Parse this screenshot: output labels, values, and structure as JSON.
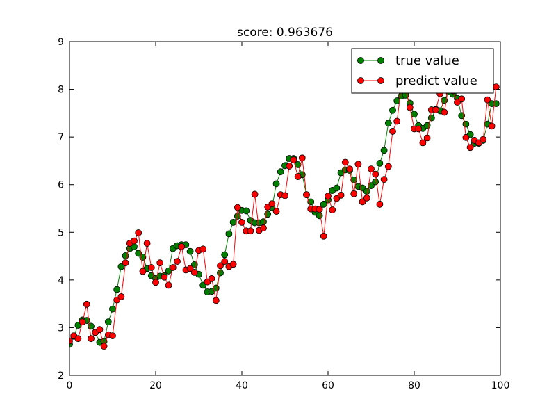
{
  "chart_data": {
    "type": "line",
    "title": "score: 0.963676",
    "xlabel": "",
    "ylabel": "",
    "xlim": [
      0,
      100
    ],
    "ylim": [
      2,
      9
    ],
    "x_ticks": [
      0,
      20,
      40,
      60,
      80,
      100
    ],
    "y_ticks": [
      2,
      3,
      4,
      5,
      6,
      7,
      8,
      9
    ],
    "x_tick_labels": [
      "0",
      "20",
      "40",
      "60",
      "80",
      "100"
    ],
    "y_tick_labels": [
      "2",
      "3",
      "4",
      "5",
      "6",
      "7",
      "8",
      "9"
    ],
    "grid": false,
    "legend_position": "top-right",
    "x": [
      0,
      1,
      2,
      3,
      4,
      5,
      6,
      7,
      8,
      9,
      10,
      11,
      12,
      13,
      14,
      15,
      16,
      17,
      18,
      19,
      20,
      21,
      22,
      23,
      24,
      25,
      26,
      27,
      28,
      29,
      30,
      31,
      32,
      33,
      34,
      35,
      36,
      37,
      38,
      39,
      40,
      41,
      42,
      43,
      44,
      45,
      46,
      47,
      48,
      49,
      50,
      51,
      52,
      53,
      54,
      55,
      56,
      57,
      58,
      59,
      60,
      61,
      62,
      63,
      64,
      65,
      66,
      67,
      68,
      69,
      70,
      71,
      72,
      73,
      74,
      75,
      76,
      77,
      78,
      79,
      80,
      81,
      82,
      83,
      84,
      85,
      86,
      87,
      88,
      89,
      90,
      91,
      92,
      93,
      94,
      95,
      96,
      97,
      98,
      99
    ],
    "series": [
      {
        "name": "true value",
        "color": "#008000",
        "values": [
          2.65,
          2.82,
          3.05,
          3.16,
          3.15,
          3.03,
          2.9,
          2.69,
          2.71,
          3.12,
          3.39,
          3.8,
          4.28,
          4.51,
          4.66,
          4.7,
          4.56,
          4.48,
          4.24,
          4.09,
          4.03,
          4.08,
          4.09,
          4.19,
          4.66,
          4.72,
          4.74,
          4.74,
          4.6,
          4.32,
          4.12,
          3.89,
          3.75,
          3.76,
          3.83,
          4.15,
          4.53,
          4.97,
          5.21,
          5.34,
          5.46,
          5.45,
          5.25,
          5.2,
          5.2,
          5.22,
          5.38,
          5.52,
          6.02,
          6.27,
          6.4,
          6.55,
          6.55,
          6.42,
          6.21,
          5.79,
          5.64,
          5.42,
          5.35,
          5.59,
          5.68,
          5.88,
          5.93,
          6.25,
          6.31,
          6.3,
          6.1,
          5.96,
          5.93,
          5.86,
          5.98,
          6.06,
          6.45,
          6.72,
          7.29,
          7.56,
          7.76,
          7.86,
          7.88,
          7.71,
          7.48,
          7.24,
          7.18,
          7.24,
          7.4,
          7.58,
          7.55,
          7.77,
          7.95,
          7.9,
          7.81,
          7.45,
          7.27,
          7.05,
          6.87,
          6.87,
          6.93,
          7.27,
          7.7,
          7.7
        ]
      },
      {
        "name": "predict value",
        "color": "#ff0000",
        "values": [
          2.72,
          2.83,
          2.77,
          3.12,
          3.49,
          2.77,
          2.9,
          2.96,
          2.61,
          2.85,
          2.83,
          3.58,
          3.65,
          4.36,
          4.77,
          4.82,
          4.99,
          4.18,
          4.77,
          4.26,
          3.95,
          4.36,
          4.06,
          3.89,
          4.26,
          4.39,
          4.7,
          4.21,
          4.24,
          4.16,
          4.62,
          4.65,
          3.96,
          4.03,
          3.57,
          4.3,
          4.39,
          4.28,
          4.33,
          5.52,
          5.21,
          5.03,
          5.03,
          5.8,
          5.04,
          5.09,
          5.53,
          5.6,
          5.44,
          5.79,
          5.77,
          6.39,
          6.52,
          6.17,
          6.56,
          5.79,
          5.49,
          5.49,
          5.48,
          4.92,
          5.76,
          5.47,
          5.71,
          5.78,
          6.47,
          6.33,
          5.81,
          6.43,
          5.64,
          5.72,
          6.33,
          6.22,
          5.59,
          6.11,
          6.38,
          7.12,
          7.33,
          8.05,
          8.05,
          7.62,
          7.17,
          7.17,
          6.88,
          6.98,
          7.57,
          7.57,
          7.91,
          7.52,
          8.09,
          7.97,
          7.73,
          7.8,
          6.99,
          6.78,
          6.93,
          6.88,
          6.95,
          7.78,
          7.23,
          8.05
        ]
      }
    ]
  }
}
